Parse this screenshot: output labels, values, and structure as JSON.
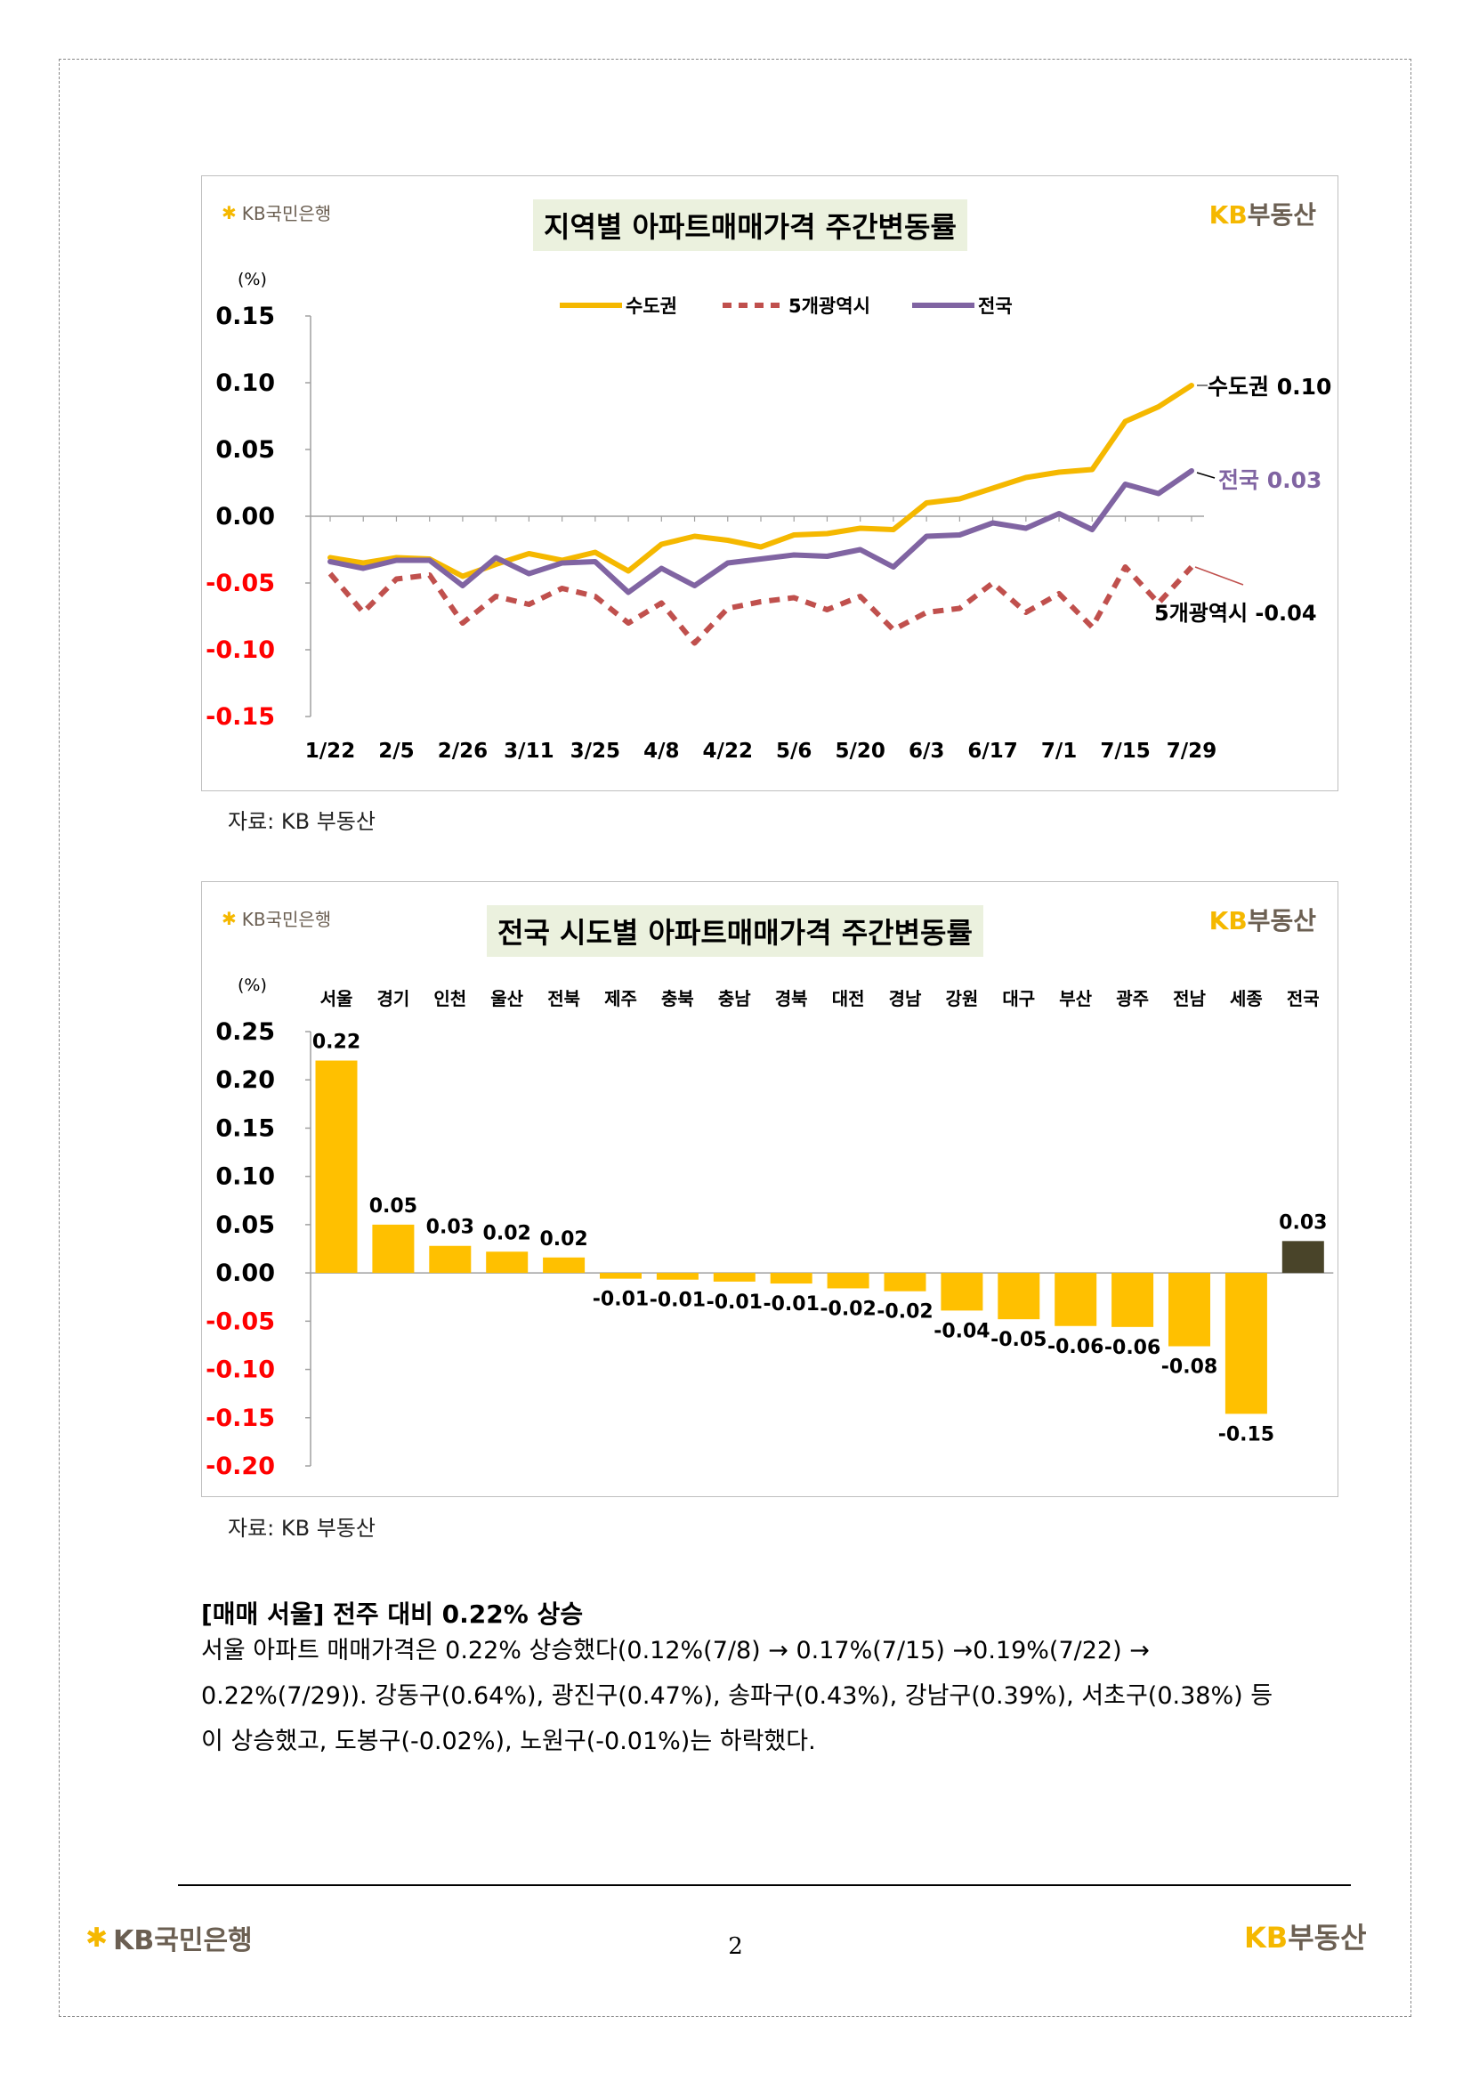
{
  "brand": {
    "bank_name": "KB국민은행",
    "land_name": "KB부동산",
    "kb_letters": "KB",
    "land_sub": "부동산"
  },
  "colors": {
    "capital": "#f5b800",
    "metro5": "#c0504d",
    "national": "#8064a2",
    "bar": "#ffc000",
    "bar_total": "#494429",
    "neg_tick": "#ff0000",
    "title_bg": "#ebf1de"
  },
  "chart1": {
    "title": "지역별 아파트매매가격 주간변동률",
    "unit": "(%)",
    "legend": [
      "수도권",
      "5개광역시",
      "전국"
    ],
    "callouts": {
      "capital": "수도권 0.10",
      "national": "전국 0.03",
      "metro5": "5개광역시 -0.04"
    }
  },
  "chart2": {
    "title": "전국 시도별 아파트매매가격 주간변동률",
    "unit": "(%)"
  },
  "chart_data": [
    {
      "type": "line",
      "title": "지역별 아파트매매가격 주간변동률",
      "ylabel": "(%)",
      "ylim": [
        -0.15,
        0.15
      ],
      "yticks": [
        "0.15",
        "0.10",
        "0.05",
        "0.00",
        "-0.05",
        "-0.10",
        "-0.15"
      ],
      "x_tick_labels": [
        "1/22",
        "2/5",
        "2/26",
        "3/11",
        "3/25",
        "4/8",
        "4/22",
        "5/6",
        "5/20",
        "6/3",
        "6/17",
        "7/1",
        "7/15",
        "7/29"
      ],
      "x": [
        "1/22",
        "1/29",
        "2/5",
        "2/13",
        "2/26",
        "3/4",
        "3/11",
        "3/18",
        "3/25",
        "4/1",
        "4/8",
        "4/15",
        "4/22",
        "4/29",
        "5/6",
        "5/13",
        "5/20",
        "5/27",
        "6/3",
        "6/10",
        "6/17",
        "6/24",
        "7/1",
        "7/8",
        "7/15",
        "7/22",
        "7/29"
      ],
      "legend_position": "top",
      "series": [
        {
          "name": "수도권",
          "style": "solid",
          "values": [
            -0.031,
            -0.035,
            -0.031,
            -0.032,
            -0.045,
            -0.036,
            -0.028,
            -0.033,
            -0.027,
            -0.041,
            -0.021,
            -0.015,
            -0.018,
            -0.023,
            -0.014,
            -0.013,
            -0.009,
            -0.01,
            0.01,
            0.013,
            0.021,
            0.029,
            0.033,
            0.035,
            0.071,
            0.082,
            0.098
          ]
        },
        {
          "name": "5개광역시",
          "style": "dashed",
          "values": [
            -0.043,
            -0.072,
            -0.047,
            -0.044,
            -0.08,
            -0.06,
            -0.066,
            -0.054,
            -0.06,
            -0.08,
            -0.065,
            -0.095,
            -0.069,
            -0.064,
            -0.061,
            -0.07,
            -0.06,
            -0.085,
            -0.072,
            -0.069,
            -0.05,
            -0.072,
            -0.058,
            -0.083,
            -0.038,
            -0.065,
            -0.038
          ]
        },
        {
          "name": "전국",
          "style": "solid",
          "values": [
            -0.034,
            -0.039,
            -0.033,
            -0.033,
            -0.052,
            -0.031,
            -0.043,
            -0.035,
            -0.034,
            -0.057,
            -0.039,
            -0.052,
            -0.035,
            -0.032,
            -0.029,
            -0.03,
            -0.025,
            -0.038,
            -0.015,
            -0.014,
            -0.005,
            -0.009,
            0.002,
            -0.01,
            0.024,
            0.017,
            0.034
          ]
        }
      ]
    },
    {
      "type": "bar",
      "title": "전국 시도별 아파트매매가격 주간변동률",
      "ylabel": "(%)",
      "ylim": [
        -0.2,
        0.25
      ],
      "yticks": [
        "0.25",
        "0.20",
        "0.15",
        "0.10",
        "0.05",
        "0.00",
        "-0.05",
        "-0.10",
        "-0.15",
        "-0.20"
      ],
      "categories": [
        "서울",
        "경기",
        "인천",
        "울산",
        "전북",
        "제주",
        "충북",
        "충남",
        "경북",
        "대전",
        "경남",
        "강원",
        "대구",
        "부산",
        "광주",
        "전남",
        "세종",
        "전국"
      ],
      "values": [
        0.22,
        0.05,
        0.028,
        0.022,
        0.016,
        -0.006,
        -0.007,
        -0.009,
        -0.011,
        -0.016,
        -0.019,
        -0.039,
        -0.048,
        -0.055,
        -0.056,
        -0.076,
        -0.146,
        0.033
      ],
      "value_labels": [
        "0.22",
        "0.05",
        "0.03",
        "0.02",
        "0.02",
        "-0.01",
        "-0.01",
        "-0.01",
        "-0.01",
        "-0.02",
        "-0.02",
        "-0.04",
        "-0.05",
        "-0.06",
        "-0.06",
        "-0.08",
        "-0.15",
        "0.03"
      ]
    }
  ],
  "source1": "자료: KB 부동산",
  "source2": "자료: KB 부동산",
  "section_heading": "[매매 서울] 전주 대비 0.22% 상승",
  "paragraph": {
    "line1": "서울 아파트 매매가격은 0.22% 상승했다(0.12%(7/8) → 0.17%(7/15) →0.19%(7/22) →",
    "line2": "0.22%(7/29)). 강동구(0.64%), 광진구(0.47%), 송파구(0.43%), 강남구(0.39%), 서초구(0.38%) 등",
    "line3": "이 상승했고, 도봉구(-0.02%), 노원구(-0.01%)는 하락했다."
  },
  "footer": {
    "page_number": "2"
  }
}
